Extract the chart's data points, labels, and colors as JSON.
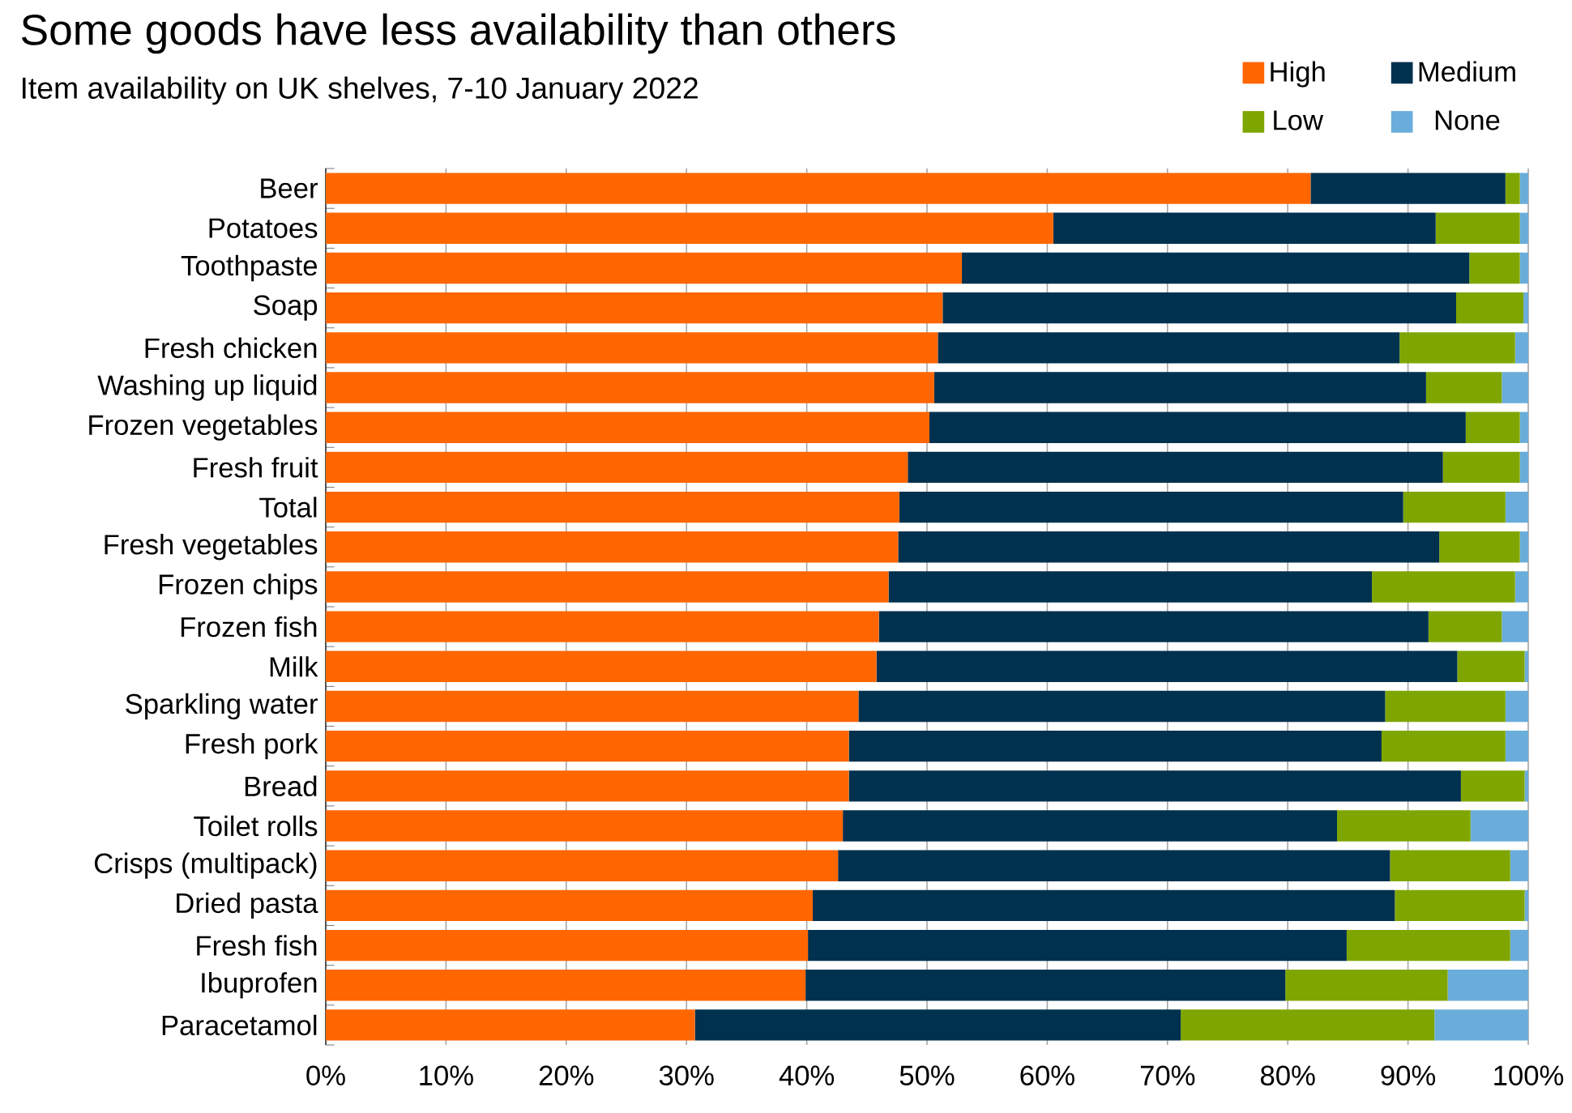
{
  "chart_data": {
    "type": "bar",
    "orientation": "horizontal",
    "stacked": true,
    "title": "Some goods have less availability than others",
    "subtitle": "Item availability on UK shelves, 7-10 January 2022",
    "categories": [
      "Beer",
      "Potatoes",
      "Toothpaste",
      "Soap",
      "Fresh chicken",
      "Washing up liquid",
      "Frozen vegetables",
      "Fresh fruit",
      "Total",
      "Fresh vegetables",
      "Frozen chips",
      "Frozen fish",
      "Milk",
      "Sparkling water",
      "Fresh pork",
      "Bread",
      "Toilet rolls",
      "Crisps (multipack)",
      "Dried pasta",
      "Fresh fish",
      "Ibuprofen",
      "Paracetamol"
    ],
    "series": [
      {
        "name": "High",
        "color": "#ff6600",
        "values": [
          81.9,
          60.5,
          52.9,
          51.3,
          50.9,
          50.6,
          50.2,
          48.4,
          47.7,
          47.6,
          46.8,
          46.0,
          45.8,
          44.3,
          43.5,
          43.5,
          43.0,
          42.6,
          40.5,
          40.1,
          39.9,
          30.7
        ]
      },
      {
        "name": "Medium",
        "color": "#00314f",
        "values": [
          16.2,
          31.8,
          42.2,
          42.7,
          38.4,
          40.9,
          44.6,
          44.5,
          41.9,
          45.0,
          40.2,
          45.7,
          48.3,
          43.8,
          44.3,
          50.9,
          41.1,
          45.9,
          48.4,
          44.8,
          39.9,
          40.4
        ]
      },
      {
        "name": "Low",
        "color": "#7fa600",
        "values": [
          1.2,
          7.0,
          4.2,
          5.6,
          9.6,
          6.3,
          4.5,
          6.4,
          8.5,
          6.7,
          11.9,
          6.1,
          5.6,
          10.0,
          10.3,
          5.3,
          11.1,
          10.0,
          10.8,
          13.6,
          13.5,
          21.1
        ]
      },
      {
        "name": "None",
        "color": "#6aaddb",
        "values": [
          0.7,
          0.7,
          0.7,
          0.4,
          1.1,
          2.2,
          0.7,
          0.7,
          1.9,
          0.7,
          1.1,
          2.2,
          0.3,
          1.9,
          1.9,
          0.3,
          4.8,
          1.5,
          0.3,
          1.5,
          6.7,
          7.8
        ]
      }
    ],
    "xlim": [
      0,
      100
    ],
    "xticks": [
      {
        "value": 0,
        "label": "0%"
      },
      {
        "value": 10,
        "label": "10%"
      },
      {
        "value": 20,
        "label": "20%"
      },
      {
        "value": 30,
        "label": "30%"
      },
      {
        "value": 40,
        "label": "40%"
      },
      {
        "value": 50,
        "label": "50%"
      },
      {
        "value": 60,
        "label": "60%"
      },
      {
        "value": 70,
        "label": "70%"
      },
      {
        "value": 80,
        "label": "80%"
      },
      {
        "value": 90,
        "label": "90%"
      },
      {
        "value": 100,
        "label": "100%"
      }
    ],
    "grid": "x",
    "legend": "top right"
  }
}
